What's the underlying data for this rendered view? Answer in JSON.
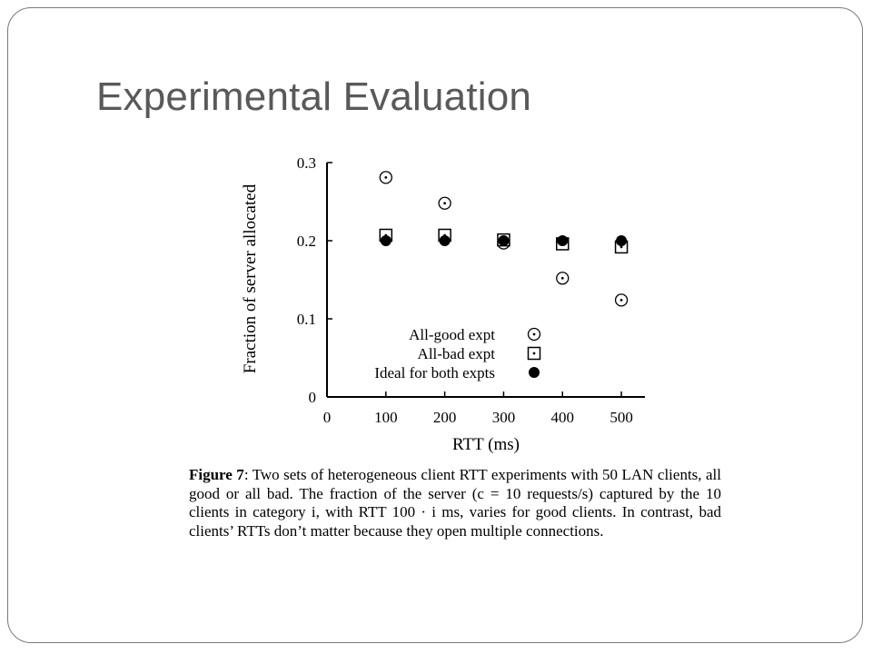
{
  "slide": {
    "title": "Experimental Evaluation"
  },
  "chart_data": {
    "type": "scatter",
    "title": "",
    "xlabel": "RTT (ms)",
    "ylabel": "Fraction of server allocated",
    "xlim": [
      0,
      540
    ],
    "ylim": [
      0,
      0.3
    ],
    "xticks": [
      0,
      100,
      200,
      300,
      400,
      500
    ],
    "yticks": [
      0,
      0.1,
      0.2,
      0.3
    ],
    "ytick_labels": [
      "0",
      "0.1",
      "0.2",
      "0.3"
    ],
    "grid": false,
    "legend_position": "bottom-right",
    "series": [
      {
        "name": "All-good expt",
        "marker": "circle-dot",
        "x": [
          100,
          200,
          300,
          400,
          500
        ],
        "y": [
          0.281,
          0.248,
          0.197,
          0.152,
          0.124
        ]
      },
      {
        "name": "All-bad expt",
        "marker": "square-dot",
        "x": [
          100,
          200,
          300,
          400,
          500
        ],
        "y": [
          0.207,
          0.207,
          0.201,
          0.196,
          0.192
        ]
      },
      {
        "name": "Ideal for both expts",
        "marker": "filled-circle",
        "x": [
          100,
          200,
          300,
          400,
          500
        ],
        "y": [
          0.2,
          0.2,
          0.2,
          0.2,
          0.2
        ]
      }
    ]
  },
  "caption": {
    "label": "Figure 7",
    "text": ": Two sets of heterogeneous client RTT experiments with 50 LAN clients, all good or all bad. The fraction of the server (c = 10 requests/s) captured by the 10 clients in category i, with RTT 100 · i ms, varies for good clients. In contrast, bad clients’ RTTs don’t matter because they open multiple connections."
  }
}
